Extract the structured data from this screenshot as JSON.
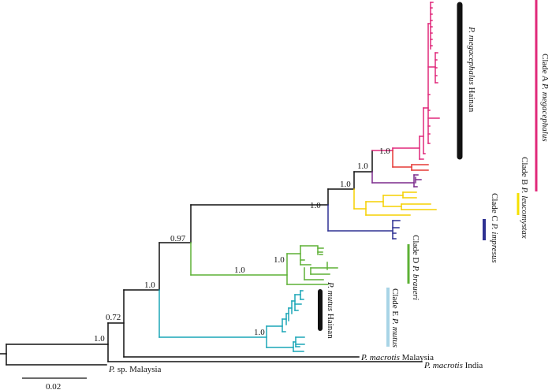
{
  "colors": {
    "black": "#111111",
    "cladeA": "#e0287a",
    "cladeA_red": "#e53935",
    "purple": "#7b2a8c",
    "cladeB": "#f5d000",
    "cladeC": "#2e3192",
    "cladeD": "#5db135",
    "cladeE": "#1aa6b7",
    "cladeE_bar": "#a8d4e6"
  },
  "support": {
    "root_upper": "1.0",
    "n072": "0.72",
    "n_main": "1.0",
    "n097": "0.97",
    "n_cladeE": "1.0",
    "n_cladeD": "1.0",
    "n_cladeD_sub": "1.0",
    "n_ABC_C": "1.0",
    "n_AB_B": "1.0",
    "n_A_purple": "1.0",
    "n_A": "1.0"
  },
  "tips": {
    "sp_malaysia": {
      "italic": "P.",
      "roman": " sp. Malaysia"
    },
    "macrotis_india": {
      "italic": "P. macrotis",
      "roman": " India"
    },
    "macrotis_malaysia": {
      "italic": "P. macrotis",
      "roman": " Malaysia"
    }
  },
  "groups": {
    "megacephalus_hainan": {
      "italic": "P. megacephalus",
      "roman": " Hainan"
    },
    "mutus_hainan": {
      "italic": "P. mutus",
      "roman": " Hainan"
    }
  },
  "clades": {
    "A": {
      "roman": "Clade A ",
      "italic": "P. megacephalus"
    },
    "B": {
      "roman": "Clade B ",
      "italic": "P. leucomystax"
    },
    "C": {
      "roman": "Clade C ",
      "italic": "P. impresus"
    },
    "D": {
      "roman": "Clade D ",
      "italic": "P. braueri"
    },
    "E": {
      "roman": "Clade E ",
      "italic": "P. mutus"
    }
  },
  "scale_bar": {
    "label": "0.02"
  }
}
